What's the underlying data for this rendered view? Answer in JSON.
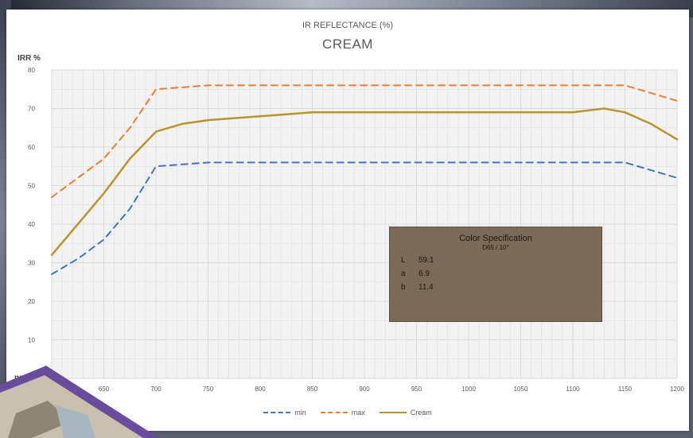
{
  "chart_data": {
    "type": "line",
    "title": "IR REFLECTANCE (%)",
    "subtitle": "CREAM",
    "ylabel": "IRR %",
    "xlabel": "nm",
    "ylim": [
      0,
      80
    ],
    "xlim": [
      600,
      1200
    ],
    "yticks": [
      "80",
      "70",
      "60",
      "50",
      "40",
      "30",
      "20",
      "10"
    ],
    "xticks": [
      "650",
      "700",
      "750",
      "800",
      "850",
      "900",
      "950",
      "1000",
      "1050",
      "1100",
      "1150",
      "1200"
    ],
    "grid": true,
    "legend_position": "bottom",
    "series": [
      {
        "name": "min",
        "style": "dashed",
        "color": "#4472c4",
        "x": [
          600,
          625,
          650,
          675,
          700,
          750,
          800,
          850,
          900,
          950,
          1000,
          1050,
          1100,
          1150,
          1175,
          1200
        ],
        "y": [
          27,
          31,
          36,
          44,
          55,
          56,
          56,
          56,
          56,
          56,
          56,
          56,
          56,
          56,
          54,
          52
        ]
      },
      {
        "name": "max",
        "style": "dashed",
        "color": "#ed7d31",
        "x": [
          600,
          625,
          650,
          675,
          700,
          750,
          800,
          850,
          900,
          950,
          1000,
          1050,
          1100,
          1150,
          1175,
          1200
        ],
        "y": [
          47,
          52,
          57,
          65,
          75,
          76,
          76,
          76,
          76,
          76,
          76,
          76,
          76,
          76,
          74,
          72
        ]
      },
      {
        "name": "Cream",
        "style": "solid",
        "color": "#b8952c",
        "x": [
          600,
          625,
          650,
          675,
          700,
          725,
          750,
          800,
          850,
          900,
          950,
          1000,
          1050,
          1100,
          1130,
          1150,
          1175,
          1200
        ],
        "y": [
          32,
          40,
          48,
          57,
          64,
          66,
          67,
          68,
          69,
          69,
          69,
          69,
          69,
          69,
          70,
          69,
          66,
          62
        ]
      }
    ]
  },
  "legend": {
    "min": "min",
    "max": "max",
    "cream": "Cream"
  },
  "spec_box": {
    "title": "Color Specification",
    "subtitle": "D65 / 10°",
    "rows": [
      {
        "key": "L",
        "value": "59.1"
      },
      {
        "key": "a",
        "value": "6.9"
      },
      {
        "key": "b",
        "value": "11.4"
      }
    ]
  },
  "colors": {
    "plot_bg": "#f2f2f2",
    "grid": "#d9d9d9",
    "spec_bg": "#7a6a58",
    "deco": "#6a4c9c"
  }
}
